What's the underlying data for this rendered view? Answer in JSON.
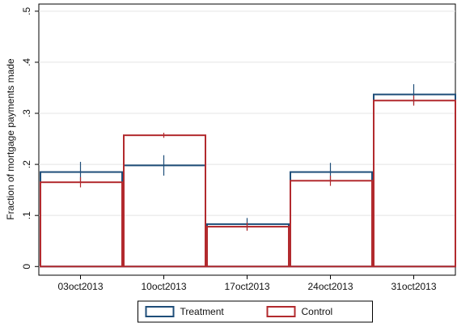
{
  "chart_data": {
    "type": "bar",
    "y_label": "Fraction of mortgage payments made",
    "categories": [
      "03oct2013",
      "10oct2013",
      "17oct2013",
      "24oct2013",
      "31oct2013"
    ],
    "series": [
      {
        "name": "Treatment",
        "color": "#1f4e79",
        "values": [
          0.185,
          0.198,
          0.083,
          0.185,
          0.337
        ],
        "errors": [
          0.02,
          0.02,
          0.012,
          0.018,
          0.02
        ]
      },
      {
        "name": "Control",
        "color": "#b22a2e",
        "values": [
          0.165,
          0.257,
          0.078,
          0.168,
          0.325
        ],
        "errors": [
          0.01,
          0.005,
          0.008,
          0.01,
          0.01
        ]
      }
    ],
    "ylim": [
      -0.017,
      0.514
    ],
    "yticks": [
      0,
      {
        "value": 0.1,
        "label": ".1"
      },
      {
        "value": 0.2,
        "label": ".2"
      },
      {
        "value": 0.3,
        "label": ".3"
      },
      {
        "value": 0.4,
        "label": ".4"
      },
      {
        "value": 0.5,
        "label": ".5"
      }
    ],
    "grid": true,
    "legend": "bottom"
  }
}
